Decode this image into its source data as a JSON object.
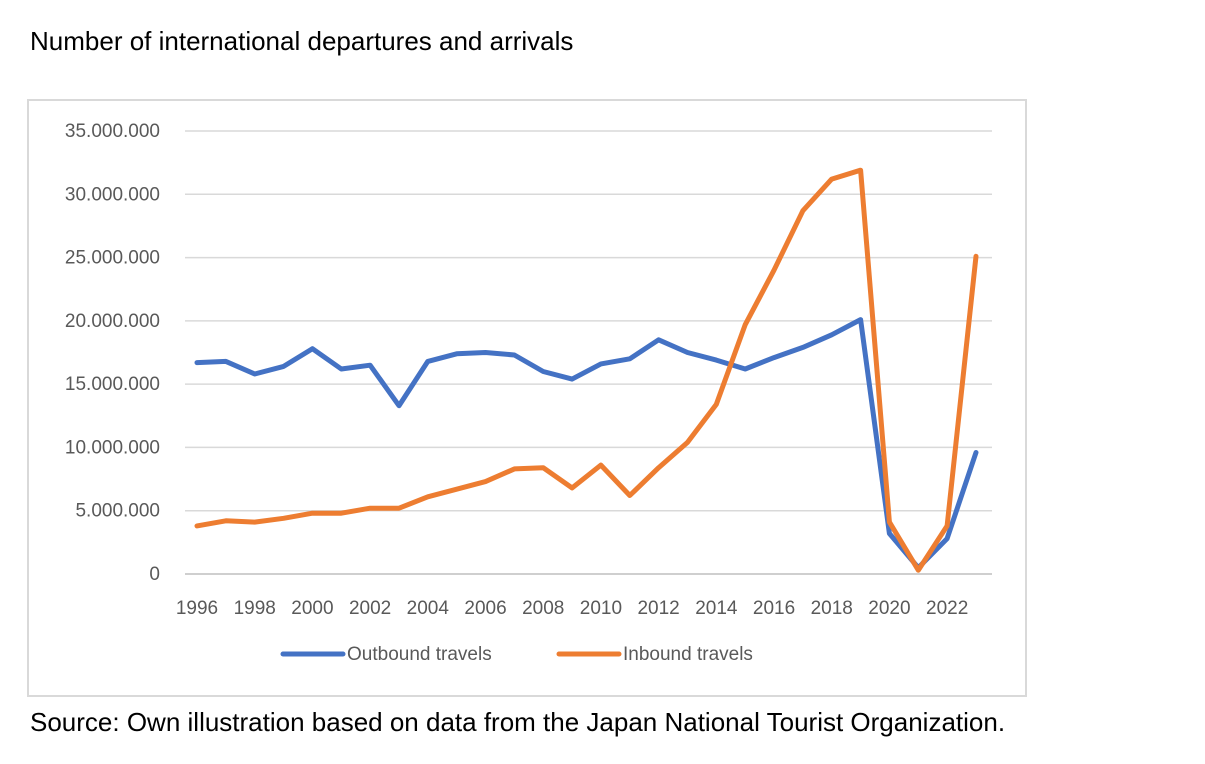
{
  "title": "Number of international departures and arrivals",
  "source": "Source: Own illustration based on data from the Japan National Tourist Organization.",
  "chart_data": {
    "type": "line",
    "title": "",
    "xlabel": "",
    "ylabel": "",
    "x": [
      1996,
      1997,
      1998,
      1999,
      2000,
      2001,
      2002,
      2003,
      2004,
      2005,
      2006,
      2007,
      2008,
      2009,
      2010,
      2011,
      2012,
      2013,
      2014,
      2015,
      2016,
      2017,
      2018,
      2019,
      2020,
      2021,
      2022,
      2023
    ],
    "x_tick_labels": [
      "1996",
      "1998",
      "2000",
      "2002",
      "2004",
      "2006",
      "2008",
      "2010",
      "2012",
      "2014",
      "2016",
      "2018",
      "2020",
      "2022"
    ],
    "ylim": [
      0,
      35000000
    ],
    "y_tick_labels": [
      "35.000.000",
      "30.000.000",
      "25.000.000",
      "20.000.000",
      "15.000.000",
      "10.000.000",
      "5.000.000",
      "0"
    ],
    "grid": true,
    "legend_position": "bottom",
    "series": [
      {
        "name": "Outbound travels",
        "color": "#4472c4",
        "values": [
          16700000,
          16800000,
          15800000,
          16400000,
          17800000,
          16200000,
          16500000,
          13300000,
          16800000,
          17400000,
          17500000,
          17300000,
          16000000,
          15400000,
          16600000,
          17000000,
          18500000,
          17500000,
          16900000,
          16200000,
          17100000,
          17900000,
          18900000,
          20100000,
          3200000,
          500000,
          2800000,
          9600000
        ]
      },
      {
        "name": "Inbound travels",
        "color": "#ed7d31",
        "values": [
          3800000,
          4200000,
          4100000,
          4400000,
          4800000,
          4800000,
          5200000,
          5200000,
          6100000,
          6700000,
          7300000,
          8300000,
          8400000,
          6800000,
          8600000,
          6200000,
          8400000,
          10400000,
          13400000,
          19700000,
          24000000,
          28700000,
          31200000,
          31900000,
          4100000,
          300000,
          3800000,
          25100000
        ]
      }
    ]
  }
}
